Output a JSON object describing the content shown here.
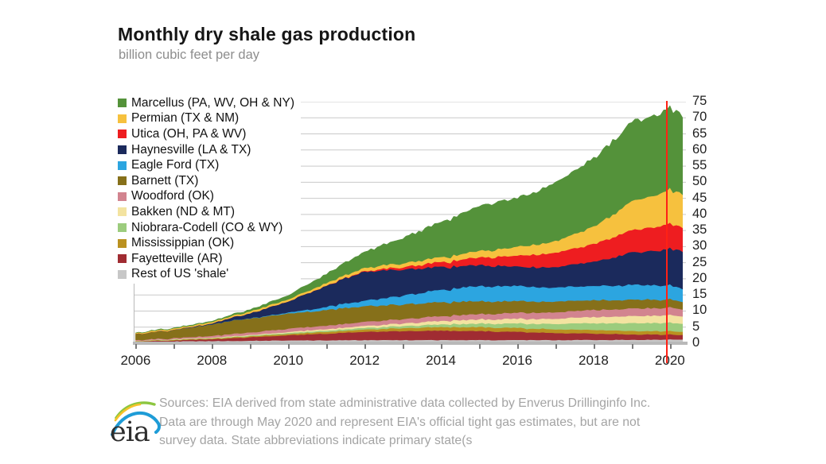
{
  "title": "Monthly dry shale gas production",
  "subtitle": "billion cubic feet per day",
  "sources": {
    "line1": "Sources: EIA derived from state administrative data collected by Enverus Drillinginfo Inc.",
    "line2": "Data are through May 2020  and represent EIA's  official tight gas estimates, but are not",
    "line3": "survey data. State abbreviations indicate primary state(s"
  },
  "logo_text": "eia",
  "colors": {
    "marker_line": "#ff2115",
    "grid": "#c9c9c9",
    "axis": "#b9b9b9"
  },
  "chart_data": {
    "type": "area",
    "stacked": true,
    "title": "Monthly dry shale gas production",
    "ylabel": "billion cubic feet per day",
    "ylim": [
      0,
      75
    ],
    "ytick_step": 5,
    "xlim": [
      2005.95,
      2020.42
    ],
    "xticks": [
      2006,
      2008,
      2010,
      2012,
      2014,
      2016,
      2018,
      2020
    ],
    "grid": true,
    "legend_position": "top-left-inside",
    "marker_line_x": 2019.9,
    "x": [
      2006,
      2007,
      2008,
      2009,
      2010,
      2011,
      2012,
      2013,
      2014,
      2015,
      2016,
      2017,
      2018,
      2019,
      2020,
      2020.42
    ],
    "series": [
      {
        "name": "Marcellus (PA, WV, OH & NY)",
        "color": "#54923a",
        "values": [
          0.1,
          0.15,
          0.25,
          0.55,
          1.2,
          2.8,
          5.0,
          7.8,
          11.0,
          13.9,
          15.1,
          18.0,
          21.0,
          24.5,
          25.0,
          24.3
        ]
      },
      {
        "name": "Permian (TX & NM)",
        "color": "#f6c13e",
        "values": [
          0.3,
          0.35,
          0.45,
          0.55,
          0.65,
          0.8,
          1.0,
          1.2,
          1.5,
          2.0,
          2.7,
          3.6,
          5.3,
          8.8,
          10.6,
          10.3
        ]
      },
      {
        "name": "Utica (OH, PA & WV)",
        "color": "#ee1d20",
        "values": [
          0,
          0,
          0,
          0,
          0,
          0.05,
          0.2,
          0.7,
          1.5,
          2.4,
          3.4,
          4.4,
          5.5,
          7.0,
          7.6,
          7.4
        ]
      },
      {
        "name": "Haynesville (LA & TX)",
        "color": "#1b2a5c",
        "values": [
          0,
          0.05,
          0.3,
          1.5,
          3.5,
          6.5,
          9.0,
          8.2,
          7.0,
          6.4,
          6.0,
          6.3,
          7.5,
          10.0,
          11.3,
          11.5
        ]
      },
      {
        "name": "Eagle Ford (TX)",
        "color": "#2ca5e0",
        "values": [
          0,
          0,
          0,
          0.05,
          0.3,
          1.0,
          1.7,
          2.8,
          3.8,
          4.7,
          4.7,
          4.3,
          4.4,
          4.6,
          4.4,
          4.0
        ]
      },
      {
        "name": "Barnett (TX)",
        "color": "#86701a",
        "values": [
          1.9,
          2.6,
          3.6,
          4.4,
          4.7,
          4.8,
          4.9,
          4.6,
          4.3,
          4.0,
          3.6,
          3.3,
          3.0,
          2.8,
          2.5,
          2.4
        ]
      },
      {
        "name": "Woodford (OK)",
        "color": "#d2848f",
        "values": [
          0.2,
          0.35,
          0.55,
          0.8,
          1.0,
          1.1,
          1.25,
          1.35,
          1.5,
          1.65,
          1.85,
          2.0,
          2.2,
          2.35,
          2.3,
          2.2
        ]
      },
      {
        "name": "Bakken (ND & MT)",
        "color": "#f3e3a0",
        "values": [
          0.05,
          0.1,
          0.15,
          0.2,
          0.3,
          0.45,
          0.6,
          0.8,
          1.05,
          1.3,
          1.45,
          1.6,
          1.9,
          2.2,
          2.4,
          2.3
        ]
      },
      {
        "name": "Niobrara-Codell (CO & WY)",
        "color": "#9ccc7d",
        "values": [
          0.05,
          0.1,
          0.15,
          0.2,
          0.3,
          0.4,
          0.5,
          0.65,
          0.85,
          1.1,
          1.4,
          1.7,
          2.1,
          2.4,
          2.6,
          2.5
        ]
      },
      {
        "name": "Mississippian (OK)",
        "color": "#ba9120",
        "values": [
          0.1,
          0.15,
          0.2,
          0.3,
          0.4,
          0.55,
          0.7,
          0.9,
          1.1,
          1.25,
          1.2,
          1.15,
          1.1,
          1.1,
          1.05,
          1.0
        ]
      },
      {
        "name": "Fayetteville (AR)",
        "color": "#a02c32",
        "values": [
          0.1,
          0.3,
          0.6,
          1.1,
          1.6,
          2.1,
          2.6,
          2.8,
          2.9,
          2.8,
          2.5,
          2.2,
          1.9,
          1.7,
          1.5,
          1.4
        ]
      },
      {
        "name": "Rest of US 'shale'",
        "color": "#c7c7c7",
        "values": [
          0.5,
          0.6,
          0.7,
          0.8,
          0.9,
          0.95,
          1.0,
          1.0,
          1.0,
          1.0,
          1.0,
          1.0,
          1.05,
          1.1,
          1.2,
          1.2
        ]
      }
    ]
  }
}
